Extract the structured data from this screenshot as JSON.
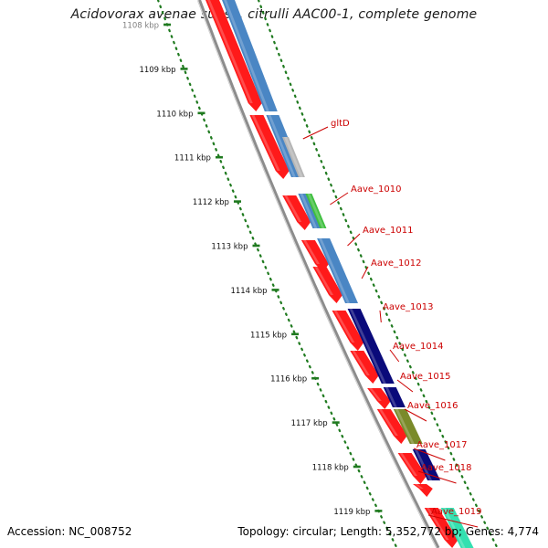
{
  "title": "Acidovorax avenae subsp. citrulli AAC00-1, complete genome",
  "footer": {
    "accession": "Accession: NC_008752",
    "topology": "Topology: circular; Length: 5,352,772 bp; Genes: 4,774"
  },
  "ruler": {
    "ticks": [
      {
        "label": "1108 kbp"
      },
      {
        "label": "1109 kbp"
      },
      {
        "label": "1110 kbp"
      },
      {
        "label": "1111 kbp"
      },
      {
        "label": "1112 kbp"
      },
      {
        "label": "1113 kbp"
      },
      {
        "label": "1114 kbp"
      },
      {
        "label": "1115 kbp"
      },
      {
        "label": "1116 kbp"
      },
      {
        "label": "1117 kbp"
      },
      {
        "label": "1118 kbp"
      },
      {
        "label": "1119 kbp"
      }
    ]
  },
  "gene_labels": [
    "gltD",
    "Aave_1010",
    "Aave_1011",
    "Aave_1012",
    "Aave_1013",
    "Aave_1014",
    "Aave_1015",
    "Aave_1016",
    "Aave_1017",
    "Aave_1018",
    "Aave_1019"
  ],
  "colors": {
    "cds": "#ff1a1a",
    "backbone": "#8c8c8c",
    "tick": "#1f7a1f",
    "label": "#cc0000",
    "feature_steelblue": "#4a86c4",
    "feature_gray": "#b5b5b5",
    "feature_green": "#3fbf3f",
    "feature_navy": "#0a0a7a",
    "feature_olive": "#7a8a2a",
    "feature_cyan": "#33e0b0"
  }
}
